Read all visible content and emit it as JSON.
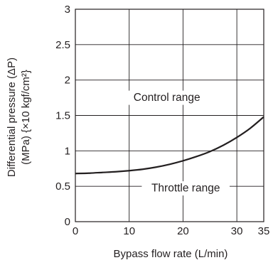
{
  "chart_data": {
    "type": "line",
    "xlabel": "Bypass flow rate (L/min)",
    "ylabel_line1": "Differential pressure (ΔP)",
    "ylabel_line2": "(MPa) {×10 kgf/cm²}",
    "xlim": [
      0,
      35
    ],
    "ylim": [
      0,
      3
    ],
    "x_ticks": [
      0,
      10,
      20,
      30,
      35
    ],
    "y_ticks": [
      0,
      0.5,
      1,
      1.5,
      2,
      2.5,
      3
    ],
    "grid": true,
    "series": [
      {
        "x": [
          0,
          2.5,
          5,
          7.5,
          10,
          12.5,
          15,
          17.5,
          20,
          22.5,
          25,
          27.5,
          30,
          32.5,
          35
        ],
        "y": [
          0.68,
          0.685,
          0.695,
          0.705,
          0.72,
          0.74,
          0.77,
          0.81,
          0.86,
          0.92,
          0.99,
          1.08,
          1.19,
          1.32,
          1.48
        ]
      }
    ],
    "annotations": [
      {
        "text": "Control range",
        "x": 17,
        "y": 1.75
      },
      {
        "text": "Throttle range",
        "x": 20.5,
        "y": 0.47
      }
    ]
  }
}
